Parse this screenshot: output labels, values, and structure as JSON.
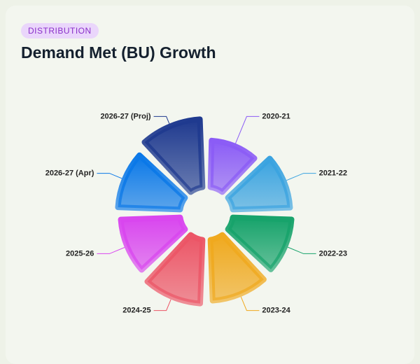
{
  "badge": "DISTRIBUTION",
  "chart_data": {
    "type": "rose",
    "title": "Demand Met (BU) Growth",
    "categories": [
      "2020-21",
      "2021-22",
      "2022-23",
      "2023-24",
      "2024-25",
      "2025-26",
      "2026-27 (Apr)",
      "2026-27 (Proj)"
    ],
    "values": [
      78,
      93,
      95,
      98,
      102,
      96,
      100,
      108
    ],
    "colors": [
      "#8b5cf6",
      "#3aa3e0",
      "#17a36b",
      "#f0a91e",
      "#ec5566",
      "#d946ef",
      "#0a78e8",
      "#1f3a8f"
    ]
  }
}
